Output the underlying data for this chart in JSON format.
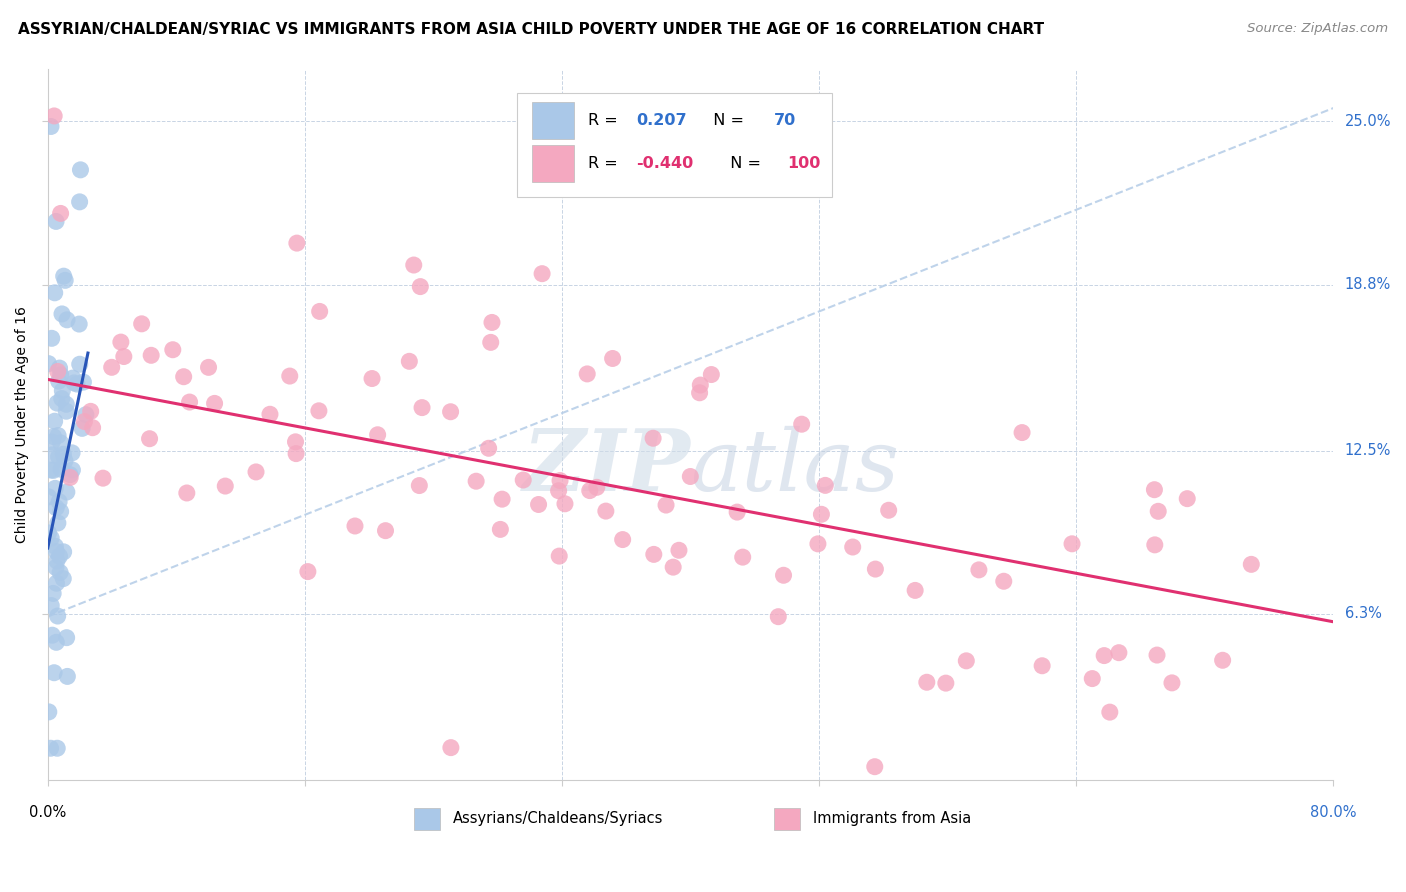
{
  "title": "ASSYRIAN/CHALDEAN/SYRIAC VS IMMIGRANTS FROM ASIA CHILD POVERTY UNDER THE AGE OF 16 CORRELATION CHART",
  "source": "Source: ZipAtlas.com",
  "ylabel": "Child Poverty Under the Age of 16",
  "ytick_labels": [
    "25.0%",
    "18.8%",
    "12.5%",
    "6.3%"
  ],
  "ytick_values": [
    0.25,
    0.188,
    0.125,
    0.063
  ],
  "legend_label1": "Assyrians/Chaldeans/Syriacs",
  "legend_label2": "Immigrants from Asia",
  "r1": "0.207",
  "n1": "70",
  "r2": "-0.440",
  "n2": "100",
  "blue_color": "#aac8e8",
  "pink_color": "#f4a8c0",
  "line_blue": "#2855b8",
  "line_pink": "#e03070",
  "line_diag_color": "#b8cfe8",
  "watermark_color": "#d0dce8",
  "background": "#ffffff",
  "grid_color": "#c8d4e4",
  "tick_color": "#3070cc",
  "title_fontsize": 11.0,
  "source_fontsize": 9.5,
  "axis_label_fontsize": 10,
  "tick_fontsize": 10.5,
  "legend_r_color": "#3070cc",
  "legend_r2_color": "#e03070",
  "xmin": 0.0,
  "xmax": 0.8,
  "ymin": 0.0,
  "ymax": 0.27,
  "blue_line_x0": 0.0,
  "blue_line_y0": 0.088,
  "blue_line_x1": 0.025,
  "blue_line_y1": 0.162,
  "pink_line_x0": 0.0,
  "pink_line_y0": 0.152,
  "pink_line_x1": 0.8,
  "pink_line_y1": 0.06,
  "diag_line_x0": 0.0,
  "diag_line_y0": 0.062,
  "diag_line_x1": 0.8,
  "diag_line_y1": 0.255
}
